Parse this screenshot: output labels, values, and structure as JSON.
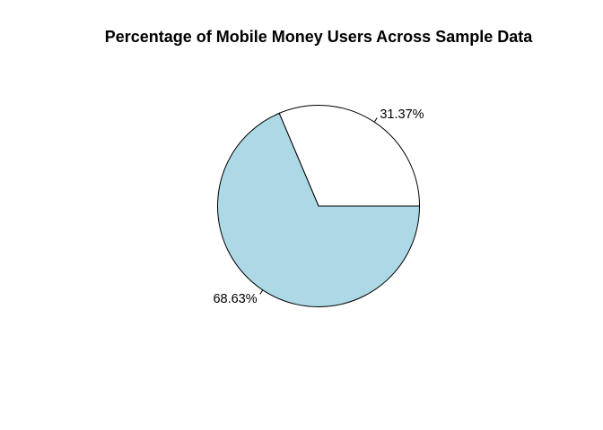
{
  "chart_data": {
    "type": "pie",
    "title": "Percentage of Mobile Money Users Across Sample Data",
    "slices": [
      {
        "label": "31.37%",
        "value": 31.37,
        "color": "#ffffff"
      },
      {
        "label": "68.63%",
        "value": 68.63,
        "color": "#add8e6"
      }
    ],
    "start_angle_deg": 0,
    "direction": "counterclockwise",
    "border_color": "#000000"
  }
}
